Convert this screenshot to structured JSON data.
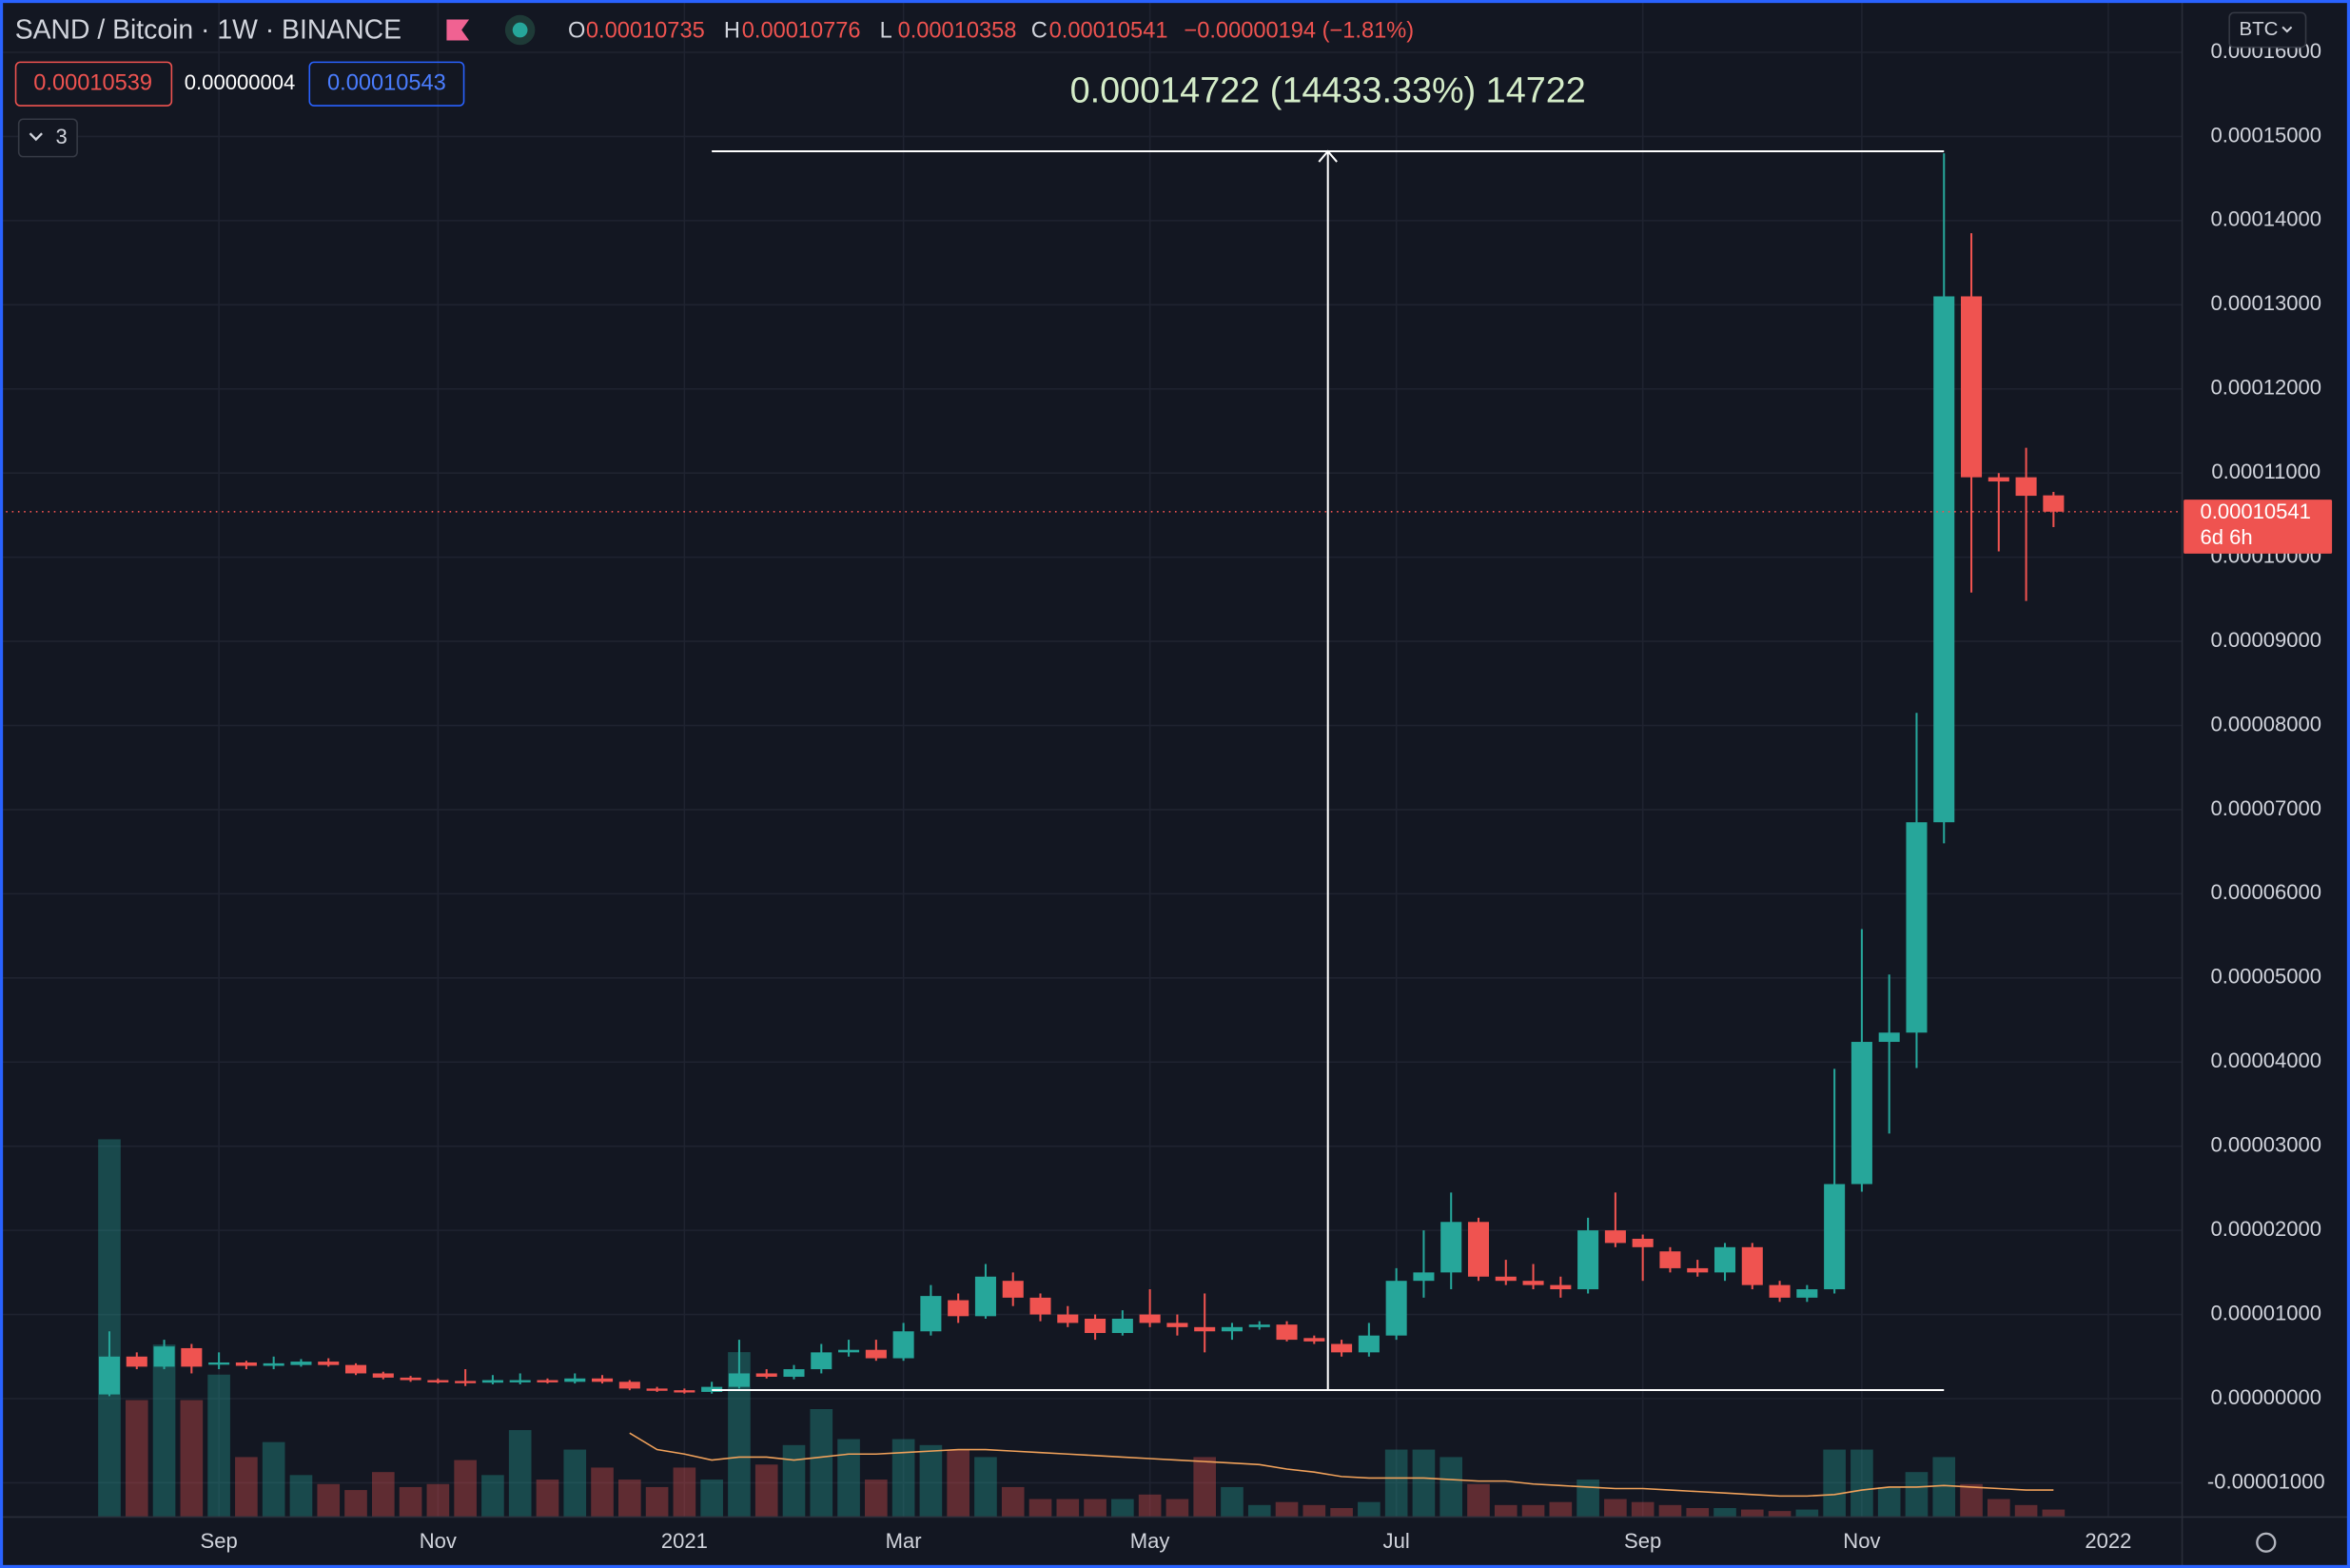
{
  "header": {
    "title": "SAND / Bitcoin · 1W · BINANCE",
    "ohlc_labels": [
      "O",
      "H",
      "L",
      "C"
    ],
    "change": "−0.00000194 (−1.81%)",
    "bid": "0.00010539",
    "spread": "0.00000004",
    "ask": "0.00010543",
    "indicator_count": "3",
    "currency": "BTC",
    "countdown": "6d 6h"
  },
  "chart_data": {
    "type": "candlestick",
    "up_color": "#26a69a",
    "down_color": "#ef5350",
    "grid": true,
    "categories": [
      null,
      null,
      null,
      null,
      "Sep",
      null,
      null,
      null,
      null,
      null,
      null,
      null,
      "Nov",
      null,
      null,
      null,
      null,
      null,
      null,
      null,
      null,
      "2021",
      null,
      null,
      null,
      null,
      null,
      null,
      null,
      "Mar",
      null,
      null,
      null,
      null,
      null,
      null,
      null,
      null,
      "May",
      null,
      null,
      null,
      null,
      null,
      null,
      null,
      null,
      "Jul",
      null,
      null,
      null,
      null,
      null,
      null,
      null,
      null,
      "Sep",
      null,
      null,
      null,
      null,
      null,
      null,
      null,
      "Nov",
      null,
      null,
      null,
      null,
      null,
      null,
      null,
      null,
      "2022"
    ],
    "open": [
      5e-07,
      5e-06,
      3.8e-06,
      6e-06,
      4.1e-06,
      4.3e-06,
      3.9e-06,
      4e-06,
      4.4e-06,
      4e-06,
      3e-06,
      2.5e-06,
      2.2e-06,
      2.1e-06,
      1.9e-06,
      2e-06,
      2.2e-06,
      2e-06,
      2.4e-06,
      2e-06,
      1.2e-06,
      1e-06,
      8e-07,
      1.4e-06,
      3e-06,
      2.6e-06,
      3.5e-06,
      5.5e-06,
      5.8e-06,
      4.8e-06,
      8e-06,
      1.17e-05,
      9.8e-06,
      1.4e-05,
      1.2e-05,
      1e-05,
      9.5e-06,
      7.8e-06,
      1e-05,
      9e-06,
      8.5e-06,
      8e-06,
      8.5e-06,
      8.8e-06,
      7.2e-06,
      6.5e-06,
      5.5e-06,
      7.5e-06,
      1.4e-05,
      1.5e-05,
      2.1e-05,
      1.45e-05,
      1.4e-05,
      1.35e-05,
      1.3e-05,
      2e-05,
      1.9e-05,
      1.75e-05,
      1.55e-05,
      1.5e-05,
      1.8e-05,
      1.35e-05,
      1.2e-05,
      1.3e-05,
      2.55e-05,
      4.24e-05,
      4.35e-05,
      6.85e-05,
      0.000131,
      0.0001095,
      0.0001095,
      0.00010735,
      null,
      null
    ],
    "high": [
      8e-06,
      5.5e-06,
      7e-06,
      6.5e-06,
      5.5e-06,
      4.5e-06,
      5e-06,
      4.7e-06,
      4.8e-06,
      4.2e-06,
      3.2e-06,
      2.7e-06,
      2.4e-06,
      3.5e-06,
      2.8e-06,
      3e-06,
      2.4e-06,
      3e-06,
      2.8e-06,
      2.2e-06,
      1.4e-06,
      1.2e-06,
      2e-06,
      7e-06,
      3.5e-06,
      4e-06,
      6.5e-06,
      7e-06,
      7e-06,
      9e-06,
      1.35e-05,
      1.25e-05,
      1.6e-05,
      1.5e-05,
      1.25e-05,
      1.1e-05,
      1e-05,
      1.05e-05,
      1.3e-05,
      1e-05,
      1.25e-05,
      9e-06,
      9.2e-06,
      9.2e-06,
      7.5e-06,
      7e-06,
      9e-06,
      1.55e-05,
      2e-05,
      2.45e-05,
      2.15e-05,
      1.65e-05,
      1.6e-05,
      1.45e-05,
      2.15e-05,
      2.45e-05,
      1.95e-05,
      1.8e-05,
      1.65e-05,
      1.85e-05,
      1.85e-05,
      1.4e-05,
      1.35e-05,
      3.92e-05,
      5.58e-05,
      5.04e-05,
      8.15e-05,
      0.000148,
      0.0001385,
      0.00011,
      0.000113,
      0.00010776,
      null,
      null
    ],
    "low": [
      3e-07,
      3.5e-06,
      3.5e-06,
      3e-06,
      3.5e-06,
      3.5e-06,
      3.5e-06,
      3.8e-06,
      3.8e-06,
      2.8e-06,
      2.3e-06,
      2e-06,
      1.8e-06,
      1.5e-06,
      1.7e-06,
      1.7e-06,
      1.8e-06,
      1.8e-06,
      1.8e-06,
      1e-06,
      8e-07,
      6e-07,
      6e-07,
      1.2e-06,
      2.4e-06,
      2.3e-06,
      3e-06,
      5e-06,
      4.5e-06,
      4.5e-06,
      7.5e-06,
      9e-06,
      9.5e-06,
      1.1e-05,
      9.2e-06,
      8.5e-06,
      7e-06,
      7.5e-06,
      8.5e-06,
      7.5e-06,
      5.5e-06,
      7e-06,
      8.2e-06,
      6.8e-06,
      6.5e-06,
      5e-06,
      5e-06,
      7e-06,
      1.2e-05,
      1.3e-05,
      1.4e-05,
      1.35e-05,
      1.3e-05,
      1.2e-05,
      1.25e-05,
      1.8e-05,
      1.4e-05,
      1.5e-05,
      1.45e-05,
      1.4e-05,
      1.3e-05,
      1.15e-05,
      1.15e-05,
      1.25e-05,
      2.46e-05,
      3.15e-05,
      3.93e-05,
      6.6e-05,
      9.58e-05,
      0.0001007,
      9.48e-05,
      0.00010358,
      null,
      null
    ],
    "close": [
      5e-06,
      3.8e-06,
      6.2e-06,
      3.8e-06,
      4.3e-06,
      3.9e-06,
      4.2e-06,
      4.4e-06,
      4e-06,
      3e-06,
      2.5e-06,
      2.2e-06,
      2e-06,
      1.9e-06,
      2.2e-06,
      2.2e-06,
      2e-06,
      2.4e-06,
      2e-06,
      1.2e-06,
      1e-06,
      8e-07,
      1.4e-06,
      3e-06,
      2.6e-06,
      3.5e-06,
      5.5e-06,
      5.8e-06,
      4.8e-06,
      8e-06,
      1.22e-05,
      9.8e-06,
      1.45e-05,
      1.2e-05,
      1e-05,
      9e-06,
      7.8e-06,
      9.5e-06,
      9e-06,
      8.5e-06,
      8e-06,
      8.5e-06,
      8.8e-06,
      7e-06,
      6.8e-06,
      5.5e-06,
      7.5e-06,
      1.4e-05,
      1.5e-05,
      2.1e-05,
      1.45e-05,
      1.4e-05,
      1.35e-05,
      1.3e-05,
      2e-05,
      1.85e-05,
      1.8e-05,
      1.55e-05,
      1.5e-05,
      1.8e-05,
      1.35e-05,
      1.2e-05,
      1.3e-05,
      2.55e-05,
      4.24e-05,
      4.35e-05,
      6.85e-05,
      0.000131,
      0.0001095,
      0.000109,
      0.0001073,
      0.00010541,
      null,
      null
    ],
    "volume": [
      252,
      78,
      115,
      78,
      95,
      40,
      50,
      28,
      22,
      18,
      30,
      20,
      22,
      38,
      28,
      58,
      25,
      45,
      33,
      25,
      20,
      33,
      25,
      110,
      35,
      48,
      72,
      52,
      25,
      52,
      48,
      45,
      40,
      20,
      12,
      12,
      12,
      12,
      15,
      12,
      40,
      20,
      8,
      10,
      8,
      6,
      10,
      45,
      45,
      40,
      22,
      8,
      8,
      10,
      25,
      12,
      10,
      8,
      6,
      6,
      5,
      4,
      5,
      45,
      45,
      20,
      30,
      40,
      22,
      12,
      8,
      5,
      null,
      null
    ],
    "volume_ma": [
      null,
      null,
      null,
      null,
      null,
      null,
      null,
      null,
      null,
      null,
      null,
      null,
      null,
      null,
      null,
      null,
      null,
      null,
      null,
      56,
      45,
      42,
      38,
      40,
      40,
      38,
      40,
      42,
      42,
      43,
      44,
      45,
      45,
      44,
      43,
      42,
      41,
      40,
      39,
      38,
      37,
      36,
      35,
      32,
      30,
      27,
      26,
      26,
      26,
      25,
      24,
      24,
      22,
      21,
      20,
      19,
      19,
      18,
      17,
      16,
      15,
      14,
      14,
      15,
      18,
      20,
      20,
      21,
      20,
      19,
      18,
      18,
      null,
      null
    ],
    "volume_ma_color": "#f0a15a",
    "ylim": [
      -1.407e-05,
      0.00016533
    ],
    "yticks": [
      {
        "value": 0.00016,
        "label": "0.00016000"
      },
      {
        "value": 0.00015,
        "label": "0.00015000"
      },
      {
        "value": 0.00014,
        "label": "0.00014000"
      },
      {
        "value": 0.00013,
        "label": "0.00013000"
      },
      {
        "value": 0.00012,
        "label": "0.00012000"
      },
      {
        "value": 0.00011,
        "label": "0.00011000"
      },
      {
        "value": 0.0001,
        "label": "0.00010000"
      },
      {
        "value": 9e-05,
        "label": "0.00009000"
      },
      {
        "value": 8e-05,
        "label": "0.00008000"
      },
      {
        "value": 7e-05,
        "label": "0.00007000"
      },
      {
        "value": 6e-05,
        "label": "0.00006000"
      },
      {
        "value": 5e-05,
        "label": "0.00005000"
      },
      {
        "value": 4e-05,
        "label": "0.00004000"
      },
      {
        "value": 3e-05,
        "label": "0.00003000"
      },
      {
        "value": 2e-05,
        "label": "0.00002000"
      },
      {
        "value": 1e-05,
        "label": "0.00001000"
      },
      {
        "value": 0,
        "label": "0.00000000"
      },
      {
        "value": -1e-05,
        "label": "-0.00001000"
      }
    ],
    "measure": {
      "from": 1.02e-06,
      "to": 0.00014824,
      "label": "0.00014722 (14433.33%) 14722"
    }
  }
}
